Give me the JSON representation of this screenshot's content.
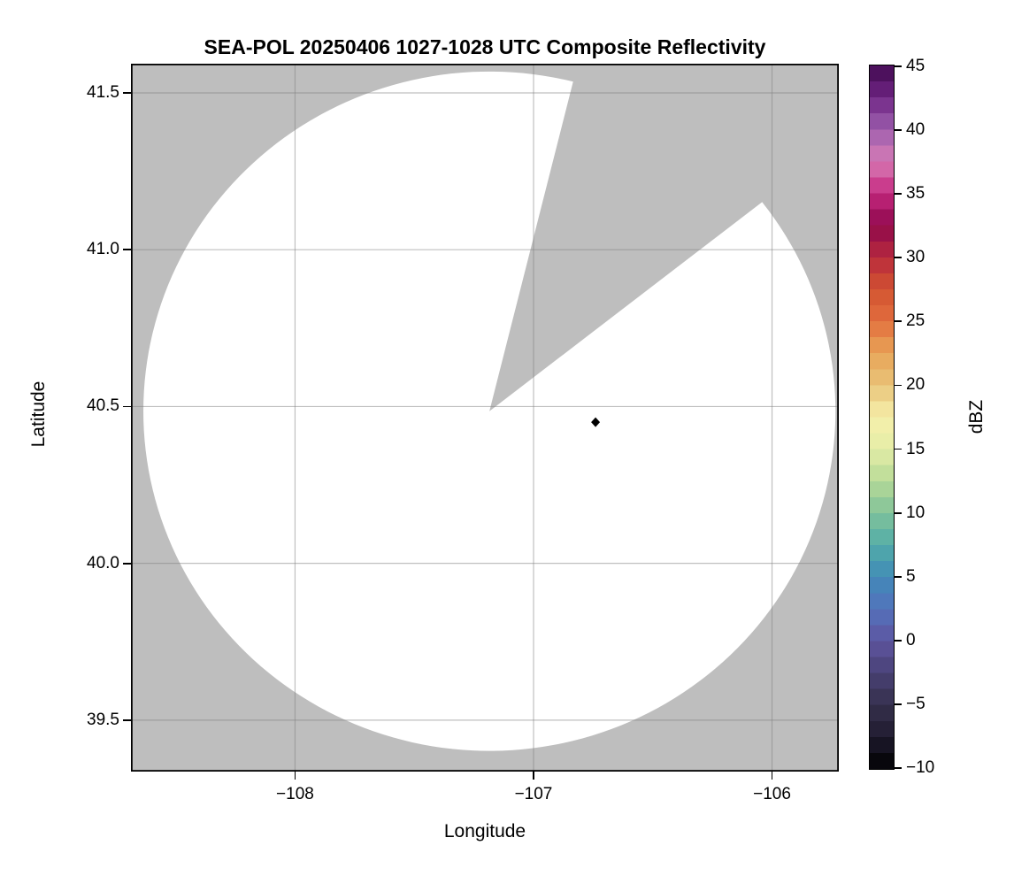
{
  "figure": {
    "title": "SEA-POL 20250406 1027-1028 UTC Composite Reflectivity"
  },
  "colors": {
    "background": "#ffffff",
    "no_data_gray": "#bebebe",
    "coverage_white": "#ffffff",
    "grid": "rgba(128,128,128,0.5)",
    "axis": "#000000",
    "text": "#000000",
    "marker": "#000000"
  },
  "chart_data": {
    "type": "heatmap",
    "title": "SEA-POL 20250406 1027-1028 UTC Composite Reflectivity",
    "xlabel": "Longitude",
    "ylabel": "Latitude",
    "xlim": [
      -108.688,
      -105.72
    ],
    "ylim": [
      39.336,
      41.593
    ],
    "grid": true,
    "xticks": {
      "values": [
        -108,
        -107,
        -106
      ],
      "labels": [
        "−108",
        "−107",
        "−106"
      ]
    },
    "yticks": {
      "values": [
        41.5,
        41.0,
        40.5,
        40.0,
        39.5
      ],
      "labels": [
        "41.5",
        "41.0",
        "40.5",
        "40.0",
        "39.5"
      ]
    },
    "radar_coverage": {
      "description": "White disk = SEA-POL radar coverage with no echoes above scale minimum; gray = no data; wedge-shaped blocked sector toward the NNE-NE",
      "center_lon": -107.185,
      "center_lat": 40.485,
      "radius_lon_deg": 1.451,
      "radius_lat_deg": 1.083,
      "blocked_sector_azimuth_from_north_deg": [
        14,
        52
      ]
    },
    "site_marker": {
      "lon": -106.74,
      "lat": 40.45,
      "shape": "diamond",
      "color": "#000000"
    },
    "colorbar": {
      "label": "dBZ",
      "min": -10,
      "max": 45,
      "ticks": [
        45,
        40,
        35,
        30,
        25,
        20,
        15,
        10,
        5,
        0,
        -5,
        -10
      ],
      "tick_labels": [
        "45",
        "40",
        "35",
        "30",
        "25",
        "20",
        "15",
        "10",
        "5",
        "0",
        "−5",
        "−10"
      ],
      "band_step_dbz": 1.25,
      "gradient_stops_low_to_high": [
        "#000000",
        "#1f1b2e",
        "#35304c",
        "#494175",
        "#5e55a0",
        "#5372bc",
        "#418ab8",
        "#52aca8",
        "#80c29a",
        "#b7da97",
        "#e4eda7",
        "#f6f0ab",
        "#e9c47a",
        "#e8a457",
        "#e26e3e",
        "#d25331",
        "#b92a3d",
        "#8e084c",
        "#c5287f",
        "#d87cb6",
        "#9d5fae",
        "#6f2584",
        "#410a50"
      ]
    }
  }
}
